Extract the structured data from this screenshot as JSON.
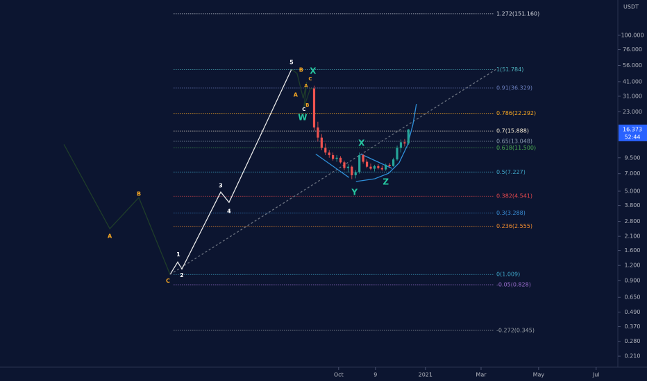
{
  "chart_data": {
    "type": "candlestick",
    "log_scale": true,
    "y_axis_label": "USDT",
    "xlim": [
      -359,
      296
    ],
    "ylim": [
      0.17,
      197
    ],
    "xticks": [
      {
        "value": 0,
        "label": "Oct"
      },
      {
        "value": 39,
        "label": "9"
      },
      {
        "value": 92,
        "label": "2021"
      },
      {
        "value": 151,
        "label": "Mar"
      },
      {
        "value": 212,
        "label": "May"
      },
      {
        "value": 273,
        "label": "Jul"
      }
    ],
    "yticks": [
      {
        "value": 100,
        "label": "100.000"
      },
      {
        "value": 76,
        "label": "76.000"
      },
      {
        "value": 56,
        "label": "56.000"
      },
      {
        "value": 41,
        "label": "41.000"
      },
      {
        "value": 31,
        "label": "31.000"
      },
      {
        "value": 23,
        "label": "23.000"
      },
      {
        "value": 9.5,
        "label": "9.500"
      },
      {
        "value": 7,
        "label": "7.000"
      },
      {
        "value": 5,
        "label": "5.000"
      },
      {
        "value": 3.8,
        "label": "3.800"
      },
      {
        "value": 2.8,
        "label": "2.800"
      },
      {
        "value": 2.1,
        "label": "2.100"
      },
      {
        "value": 1.6,
        "label": "1.600"
      },
      {
        "value": 1.2,
        "label": "1.200"
      },
      {
        "value": 0.9,
        "label": "0.900"
      },
      {
        "value": 0.65,
        "label": "0.650"
      },
      {
        "value": 0.49,
        "label": "0.490"
      },
      {
        "value": 0.37,
        "label": "0.370"
      },
      {
        "value": 0.28,
        "label": "0.280"
      },
      {
        "value": 0.21,
        "label": "0.210"
      }
    ],
    "current_price": {
      "value": 16.373,
      "label": "16.373",
      "color": "#2962ff"
    },
    "countdown": "52:44",
    "up_color": "#26a69a",
    "down_color": "#ef5350",
    "candles": {
      "x": [
        -26,
        -22,
        -18,
        -14,
        -10,
        -6,
        -2,
        2,
        6,
        10,
        14,
        18,
        22,
        26,
        30,
        34,
        38,
        42,
        46,
        50,
        54,
        58,
        62,
        66,
        70,
        74
      ],
      "open": [
        36,
        17,
        14,
        11.5,
        10.5,
        10,
        9.3,
        9.5,
        8.7,
        7.8,
        8,
        6.8,
        7.2,
        10,
        8.8,
        8,
        7.7,
        8.1,
        7.8,
        7.6,
        8.3,
        8.1,
        9.2,
        11.5,
        12.8,
        12.5
      ],
      "high": [
        38,
        19,
        15,
        12.5,
        11,
        10.5,
        10,
        9.8,
        9,
        8.4,
        8.2,
        7.5,
        10.5,
        10.2,
        9.2,
        8.5,
        8.3,
        8.4,
        8.2,
        8.5,
        8.6,
        9.5,
        12,
        13.5,
        13.6,
        16.5
      ],
      "low": [
        16,
        13,
        11,
        10,
        9.5,
        9,
        8.8,
        8.5,
        7.5,
        7.2,
        6.3,
        6.4,
        7,
        8.5,
        7.8,
        7.5,
        7.3,
        7.6,
        7.4,
        7.4,
        7.9,
        8,
        9,
        10.5,
        11.8,
        12.2
      ],
      "close": [
        17,
        14,
        11.5,
        10.5,
        10,
        9.3,
        9.5,
        8.7,
        7.8,
        8,
        6.8,
        7.2,
        10,
        8.8,
        8,
        7.7,
        8.1,
        7.8,
        7.6,
        8.3,
        8.1,
        9.2,
        11.5,
        12.8,
        12.5,
        16.373
      ]
    },
    "fib_levels": [
      {
        "label": "1.272(151.160)",
        "value": 151.16,
        "color": "#d1d4dc"
      },
      {
        "label": "1(51.784)",
        "value": 51.784,
        "color": "#4fb3bf"
      },
      {
        "label": "0.91(36.329)",
        "value": 36.329,
        "color": "#6b7fbf"
      },
      {
        "label": "0.786(22.292)",
        "value": 22.292,
        "color": "#f5a623"
      },
      {
        "label": "0.7(15.888)",
        "value": 15.888,
        "color": "#f0e6d0"
      },
      {
        "label": "0.65(13.048)",
        "value": 13.048,
        "color": "#8a9bb0"
      },
      {
        "label": "0.618(11.500)",
        "value": 11.5,
        "color": "#4caf50"
      },
      {
        "label": "0.5(7.227)",
        "value": 7.227,
        "color": "#3fa7c9"
      },
      {
        "label": "0.382(4.541)",
        "value": 4.541,
        "color": "#e5484d"
      },
      {
        "label": "0.3(3.288)",
        "value": 3.288,
        "color": "#3a8fd9"
      },
      {
        "label": "0.236(2.555)",
        "value": 2.555,
        "color": "#f08c2e"
      },
      {
        "label": "0(1.009)",
        "value": 1.009,
        "color": "#3fa7c9"
      },
      {
        "label": "-0.05(0.828)",
        "value": 0.828,
        "color": "#9c6fcf"
      },
      {
        "label": "-0.272(0.345)",
        "value": 0.345,
        "color": "#9aa0a6"
      }
    ],
    "wave_paths": [
      {
        "color": "#1f3d2a",
        "dash": false,
        "x": [
          -291.2,
          -242.6,
          -211.8,
          -178.7
        ],
        "values": [
          12.3,
          2.43,
          4.42,
          1.009
        ]
      },
      {
        "color": "#e8e8e8",
        "dash": false,
        "x": [
          -178.7,
          -170.6,
          -166.2,
          -125,
          -116.2,
          -50
        ],
        "values": [
          1.009,
          1.28,
          1.12,
          4.92,
          4.03,
          52
        ]
      },
      {
        "color": "#1f3d2a",
        "dash": false,
        "x": [
          -50,
          -44.1,
          -37.5,
          -33.8,
          -36.8,
          -30.1,
          -27.2
        ],
        "values": [
          52,
          48.1,
          29.7,
          40.9,
          25,
          35.8,
          36
        ]
      },
      {
        "color": "#6b7280",
        "dash": true,
        "x": [
          -178.7,
          166.9
        ],
        "values": [
          1.009,
          52
        ]
      },
      {
        "color": "#2f8fd8",
        "dash": false,
        "x": [
          -24.3,
          11
        ],
        "values": [
          10.2,
          6.51
        ]
      },
      {
        "color": "#2f8fd8",
        "dash": false,
        "x": [
          23.5,
          56.6
        ],
        "values": [
          10.2,
          7.75
        ]
      },
      {
        "color": "#2f8fd8",
        "dash": false,
        "x": [
          18.4,
          38.2,
          52.9,
          64,
          72.8,
          78.7,
          82.4
        ],
        "values": [
          6.02,
          6.34,
          7.05,
          8.61,
          12,
          17.9,
          26.7
        ]
      }
    ],
    "annotations": [
      {
        "text": "A",
        "x": -242.6,
        "y": 2.1,
        "color": "#f5a623",
        "size": 8
      },
      {
        "text": "B",
        "x": -211.8,
        "y": 4.73,
        "color": "#f5a623",
        "size": 8
      },
      {
        "text": "C",
        "x": -180.9,
        "y": 0.894,
        "color": "#f5a623",
        "size": 8
      },
      {
        "text": "1",
        "x": -169.9,
        "y": 1.48,
        "color": "#ffffff",
        "size": 8
      },
      {
        "text": "2",
        "x": -166.2,
        "y": 0.995,
        "color": "#ffffff",
        "size": 8
      },
      {
        "text": "3",
        "x": -125,
        "y": 5.55,
        "color": "#ffffff",
        "size": 8
      },
      {
        "text": "4",
        "x": -116.2,
        "y": 3.39,
        "color": "#ffffff",
        "size": 8
      },
      {
        "text": "5",
        "x": -50,
        "y": 59.4,
        "color": "#ffffff",
        "size": 8
      },
      {
        "text": "B",
        "x": -39.7,
        "y": 51.4,
        "color": "#f5a623",
        "size": 8
      },
      {
        "text": "C",
        "x": -30.1,
        "y": 43.2,
        "color": "#f5a623",
        "size": 7
      },
      {
        "text": "A",
        "x": -34.6,
        "y": 37.8,
        "color": "#f5a623",
        "size": 7
      },
      {
        "text": "A",
        "x": -45.6,
        "y": 31.8,
        "color": "#f5a623",
        "size": 8
      },
      {
        "text": "B",
        "x": -33.1,
        "y": 26,
        "color": "#f5a623",
        "size": 7
      },
      {
        "text": "C",
        "x": -36.8,
        "y": 24,
        "color": "#ffffff",
        "size": 7
      },
      {
        "text": "W",
        "x": -38.2,
        "y": 20.5,
        "color": "#26c6a0",
        "size": 12
      },
      {
        "text": "X",
        "x": -27.2,
        "y": 50,
        "color": "#26c6a0",
        "size": 12
      },
      {
        "text": "X",
        "x": 24.3,
        "y": 12.5,
        "color": "#26c6a0",
        "size": 12
      },
      {
        "text": "Y",
        "x": 16.9,
        "y": 4.86,
        "color": "#26c6a0",
        "size": 12
      },
      {
        "text": "Z",
        "x": 50,
        "y": 5.93,
        "color": "#26c6a0",
        "size": 12
      }
    ]
  }
}
